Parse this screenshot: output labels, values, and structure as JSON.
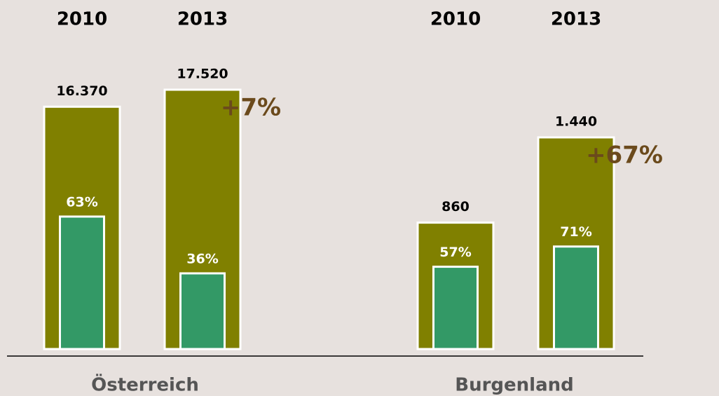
{
  "chart_data": {
    "type": "bar",
    "groups": [
      "Österreich",
      "Burgenland"
    ],
    "categories": [
      "2010",
      "2013",
      "2010",
      "2013"
    ],
    "series": [
      {
        "color": "#808000",
        "values": [
          16370,
          17520,
          860,
          1440
        ],
        "value_labels": [
          "16.370",
          "17.520",
          "860",
          "1.440"
        ]
      },
      {
        "color": "#339966",
        "values": [
          63,
          36,
          57,
          71
        ],
        "value_labels": [
          "63%",
          "36%",
          "57%",
          "71%"
        ]
      }
    ],
    "changes": [
      7,
      67
    ],
    "change_labels": [
      "+7%",
      "+67%"
    ]
  }
}
